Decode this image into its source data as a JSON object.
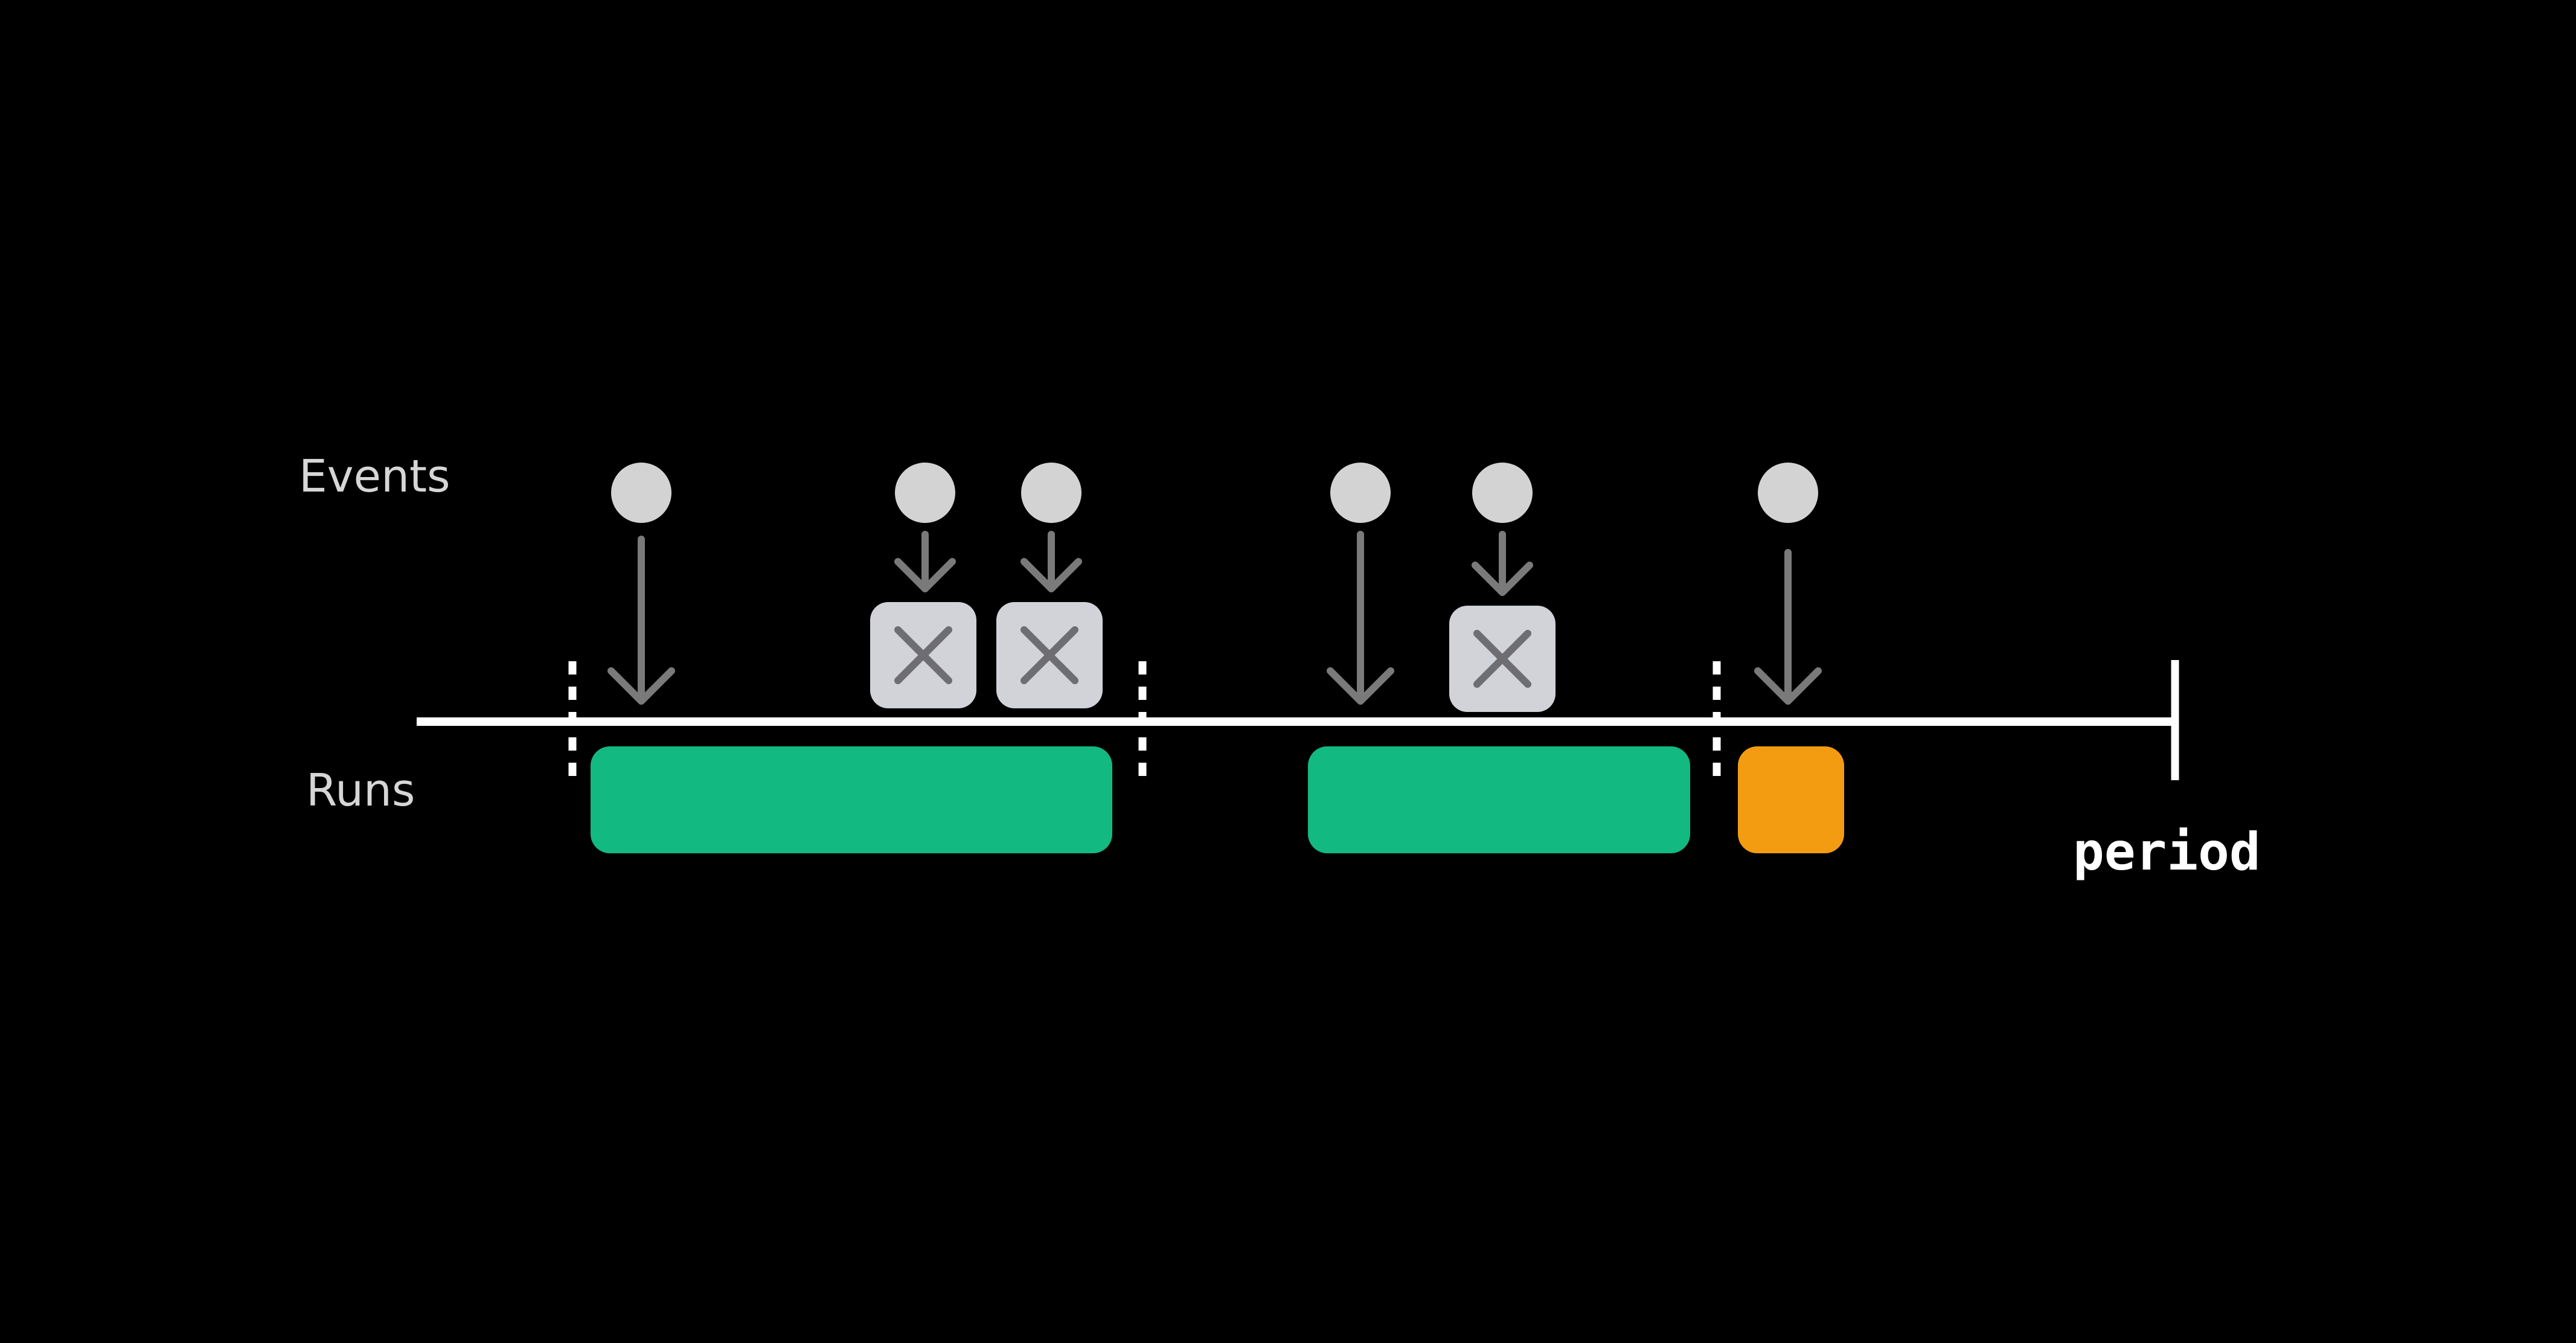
{
  "diagram": {
    "row_labels": {
      "events": "Events",
      "runs": "Runs"
    },
    "period_label": "period",
    "colors": {
      "background": "#000000",
      "timeline": "#ffffff",
      "event_dot": "#d3d3d3",
      "arrow": "#7a7a7a",
      "dropped_box": "#d1d3d9",
      "dropped_x": "#6e6e72",
      "run_normal": "#12b981",
      "run_partial": "#f39c11"
    },
    "events": [
      {
        "id": "event-1",
        "dropped": false
      },
      {
        "id": "event-2",
        "dropped": true
      },
      {
        "id": "event-3",
        "dropped": true
      },
      {
        "id": "event-4",
        "dropped": false
      },
      {
        "id": "event-5",
        "dropped": true
      },
      {
        "id": "event-6",
        "dropped": false
      }
    ],
    "runs": [
      {
        "id": "run-1",
        "kind": "complete"
      },
      {
        "id": "run-2",
        "kind": "complete"
      },
      {
        "id": "run-3",
        "kind": "partial"
      }
    ]
  }
}
